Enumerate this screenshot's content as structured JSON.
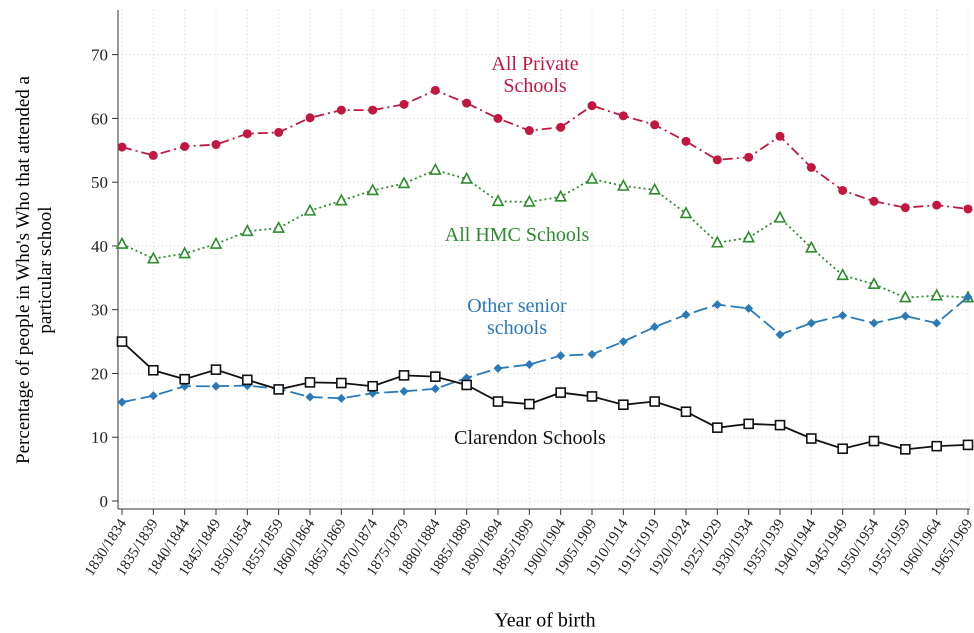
{
  "chart_data": {
    "type": "line",
    "y_label": "Percentage of people in Who's Who that attended a particular school",
    "x_label": "Year of birth",
    "categories": [
      "1830/1834",
      "1835/1839",
      "1840/1844",
      "1845/1849",
      "1850/1854",
      "1855/1859",
      "1860/1864",
      "1865/1869",
      "1870/1874",
      "1875/1879",
      "1880/1884",
      "1885/1889",
      "1890/1894",
      "1895/1899",
      "1900/1904",
      "1905/1909",
      "1910/1914",
      "1915/1919",
      "1920/1924",
      "1925/1929",
      "1930/1934",
      "1935/1939",
      "1940/1944",
      "1945/1949",
      "1950/1954",
      "1955/1959",
      "1960/1964",
      "1965/1969"
    ],
    "series": [
      {
        "name": "All Private Schools",
        "color": "#c21840",
        "values": [
          55.5,
          54.2,
          55.6,
          55.9,
          57.6,
          57.8,
          60.1,
          61.3,
          61.3,
          62.2,
          64.4,
          62.4,
          60.0,
          58.1,
          58.6,
          62.0,
          60.4,
          59.0,
          56.4,
          53.5,
          53.9,
          57.2,
          52.3,
          48.7,
          47.0,
          46.0,
          46.4,
          45.8
        ]
      },
      {
        "name": "All HMC Schools",
        "color": "#2e8b2e",
        "values": [
          40.3,
          38.0,
          38.8,
          40.3,
          42.3,
          42.8,
          45.5,
          47.1,
          48.7,
          49.8,
          51.9,
          50.5,
          47.0,
          46.9,
          47.7,
          50.5,
          49.4,
          48.8,
          45.1,
          40.5,
          41.3,
          44.4,
          39.7,
          35.4,
          34.0,
          31.9,
          32.2,
          31.9
        ]
      },
      {
        "name": "Other senior schools",
        "color": "#2a7ab8",
        "values": [
          15.5,
          16.5,
          18.0,
          18.0,
          18.1,
          17.6,
          16.3,
          16.1,
          16.9,
          17.2,
          17.6,
          19.3,
          20.8,
          21.4,
          22.8,
          23.0,
          25.0,
          27.3,
          29.2,
          30.8,
          30.2,
          26.1,
          27.9,
          29.1,
          27.9,
          29.0,
          27.9,
          32.0
        ]
      },
      {
        "name": "Clarendon Schools",
        "color": "#111111",
        "values": [
          25.0,
          20.5,
          19.1,
          20.6,
          19.0,
          17.5,
          18.6,
          18.5,
          18.0,
          19.7,
          19.5,
          18.2,
          15.6,
          15.2,
          17.0,
          16.4,
          15.1,
          15.6,
          14.0,
          11.5,
          12.1,
          11.9,
          9.8,
          8.2,
          9.4,
          8.1,
          8.6,
          8.8
        ]
      }
    ],
    "ylim": [
      0,
      77
    ],
    "yticks": [
      0,
      10,
      20,
      30,
      40,
      50,
      60,
      70
    ],
    "grid": true
  }
}
